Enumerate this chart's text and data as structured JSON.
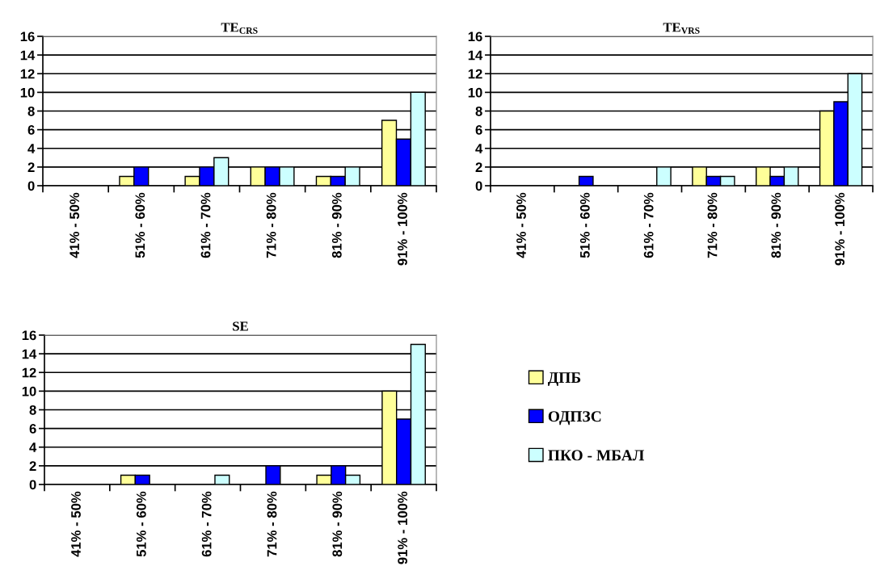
{
  "chart_data": [
    {
      "type": "bar",
      "title": "TE$_{CRS}$",
      "categories": [
        "41% - 50%",
        "51% - 60%",
        "61% - 70%",
        "71% - 80%",
        "81% - 90%",
        "91% - 100%"
      ],
      "series": [
        {
          "color": "#ffff99",
          "values": [
            0,
            1,
            1,
            2,
            1,
            7
          ]
        },
        {
          "color": "#0000ff",
          "values": [
            0,
            2,
            2,
            2,
            1,
            5
          ]
        },
        {
          "color": "#ccffff",
          "values": [
            0,
            0,
            3,
            2,
            2,
            10
          ]
        }
      ],
      "ylim": [
        0,
        16
      ],
      "yticks": [
        0,
        2,
        4,
        6,
        8,
        10,
        12,
        14,
        16
      ],
      "grid": "y"
    },
    {
      "type": "bar",
      "title": "TE$_{VRS}$",
      "categories": [
        "41% - 50%",
        "51% - 60%",
        "61% - 70%",
        "71% - 80%",
        "81% - 90%",
        "91% - 100%"
      ],
      "series": [
        {
          "color": "#ffff99",
          "values": [
            0,
            0,
            0,
            2,
            2,
            8
          ]
        },
        {
          "color": "#0000ff",
          "values": [
            0,
            1,
            0,
            1,
            1,
            9
          ]
        },
        {
          "color": "#ccffff",
          "values": [
            0,
            0,
            2,
            1,
            2,
            12
          ]
        }
      ],
      "ylim": [
        0,
        16
      ],
      "yticks": [
        0,
        2,
        4,
        6,
        8,
        10,
        12,
        14,
        16
      ],
      "grid": "y"
    },
    {
      "type": "bar",
      "title": "SE",
      "categories": [
        "41% - 50%",
        "51% - 60%",
        "61% - 70%",
        "71% - 80%",
        "81% - 90%",
        "91% - 100%"
      ],
      "series": [
        {
          "name": "ДПБ",
          "color": "#ffff99",
          "values": [
            0,
            1,
            0,
            0,
            1,
            10
          ]
        },
        {
          "name": "ОДПЗС",
          "color": "#0000ff",
          "values": [
            0,
            1,
            0,
            2,
            2,
            7
          ]
        },
        {
          "name": "ПКО - МБАЛ",
          "color": "#ccffff",
          "values": [
            0,
            0,
            1,
            0,
            1,
            15
          ]
        }
      ],
      "ylim": [
        0,
        16
      ],
      "yticks": [
        0,
        2,
        4,
        6,
        8,
        10,
        12,
        14,
        16
      ],
      "grid": "y",
      "legend": "right"
    }
  ]
}
